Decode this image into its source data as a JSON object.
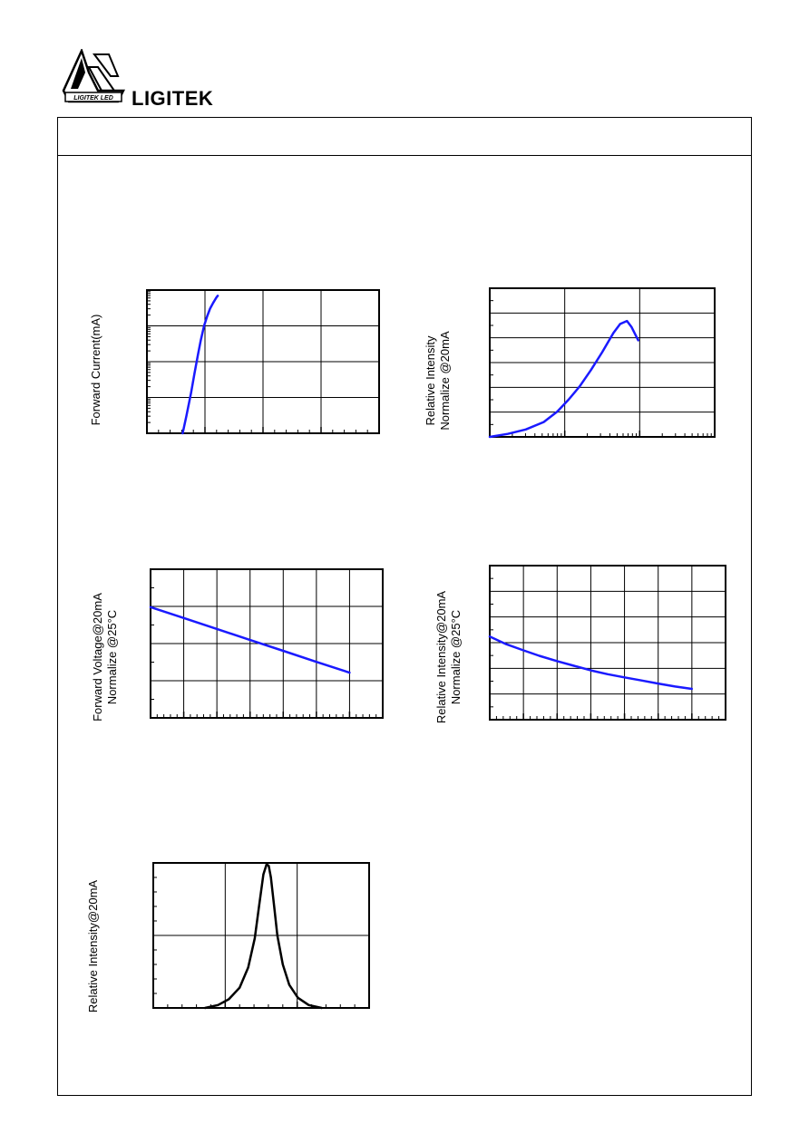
{
  "header": {
    "brand_name": "LIGITEK",
    "logo_text": "LIGITEK LED"
  },
  "chart_data": [
    {
      "type": "line",
      "ylabel": "Forward Current(mA)",
      "ylabel2": "",
      "log_y": true,
      "x_grid_divisions": 4,
      "y_grid_divisions": 4,
      "color": "#1a1aff",
      "series": [
        {
          "x": [
            0.154,
            0.17,
            0.19,
            0.205,
            0.22,
            0.232,
            0.246,
            0.26,
            0.272,
            0.285,
            0.3,
            0.305
          ],
          "y": [
            0.0,
            0.12,
            0.28,
            0.42,
            0.55,
            0.65,
            0.75,
            0.82,
            0.87,
            0.91,
            0.95,
            0.96
          ]
        }
      ]
    },
    {
      "type": "line",
      "ylabel": "Relative Intensity",
      "ylabel2": "Normalize @20mA",
      "log_x": true,
      "x_grid_divisions": 3,
      "y_grid_divisions": 6,
      "color": "#1a1aff",
      "series": [
        {
          "x": [
            0.0,
            0.08,
            0.16,
            0.24,
            0.3,
            0.35,
            0.4,
            0.45,
            0.5,
            0.55,
            0.58,
            0.61,
            0.63,
            0.66
          ],
          "y": [
            0.0,
            0.02,
            0.05,
            0.1,
            0.17,
            0.25,
            0.34,
            0.45,
            0.57,
            0.7,
            0.76,
            0.78,
            0.74,
            0.65
          ]
        }
      ]
    },
    {
      "type": "line",
      "ylabel": "Forward Voltage@20mA",
      "ylabel2": "Normalize @25°C",
      "x_grid_divisions": 7,
      "y_grid_divisions": 4,
      "color": "#1a1aff",
      "series": [
        {
          "x": [
            0.0,
            0.143,
            0.286,
            0.429,
            0.571,
            0.714,
            0.857
          ],
          "y": [
            0.745,
            0.672,
            0.598,
            0.524,
            0.451,
            0.377,
            0.304
          ]
        }
      ]
    },
    {
      "type": "line",
      "ylabel": "Relative Intensity@20mA",
      "ylabel2": "Normalize @25°C",
      "x_grid_divisions": 7,
      "y_grid_divisions": 6,
      "color": "#1a1aff",
      "series": [
        {
          "x": [
            0.0,
            0.07,
            0.143,
            0.21,
            0.286,
            0.357,
            0.429,
            0.5,
            0.571,
            0.643,
            0.714,
            0.786,
            0.857
          ],
          "y": [
            0.54,
            0.49,
            0.45,
            0.415,
            0.38,
            0.35,
            0.32,
            0.295,
            0.275,
            0.255,
            0.235,
            0.215,
            0.2
          ]
        }
      ]
    },
    {
      "type": "line",
      "ylabel": "Relative Intensity@20mA",
      "ylabel2": "",
      "x_grid_divisions": 3,
      "y_grid_divisions": 2,
      "color": "#000000",
      "series": [
        {
          "x": [
            0.24,
            0.3,
            0.35,
            0.4,
            0.44,
            0.47,
            0.49,
            0.51,
            0.525,
            0.535,
            0.545,
            0.56,
            0.575,
            0.6,
            0.63,
            0.67,
            0.72,
            0.78
          ],
          "y": [
            0.0,
            0.02,
            0.06,
            0.14,
            0.28,
            0.48,
            0.7,
            0.92,
            0.99,
            0.98,
            0.9,
            0.7,
            0.5,
            0.3,
            0.16,
            0.07,
            0.02,
            0.0
          ]
        }
      ]
    }
  ]
}
